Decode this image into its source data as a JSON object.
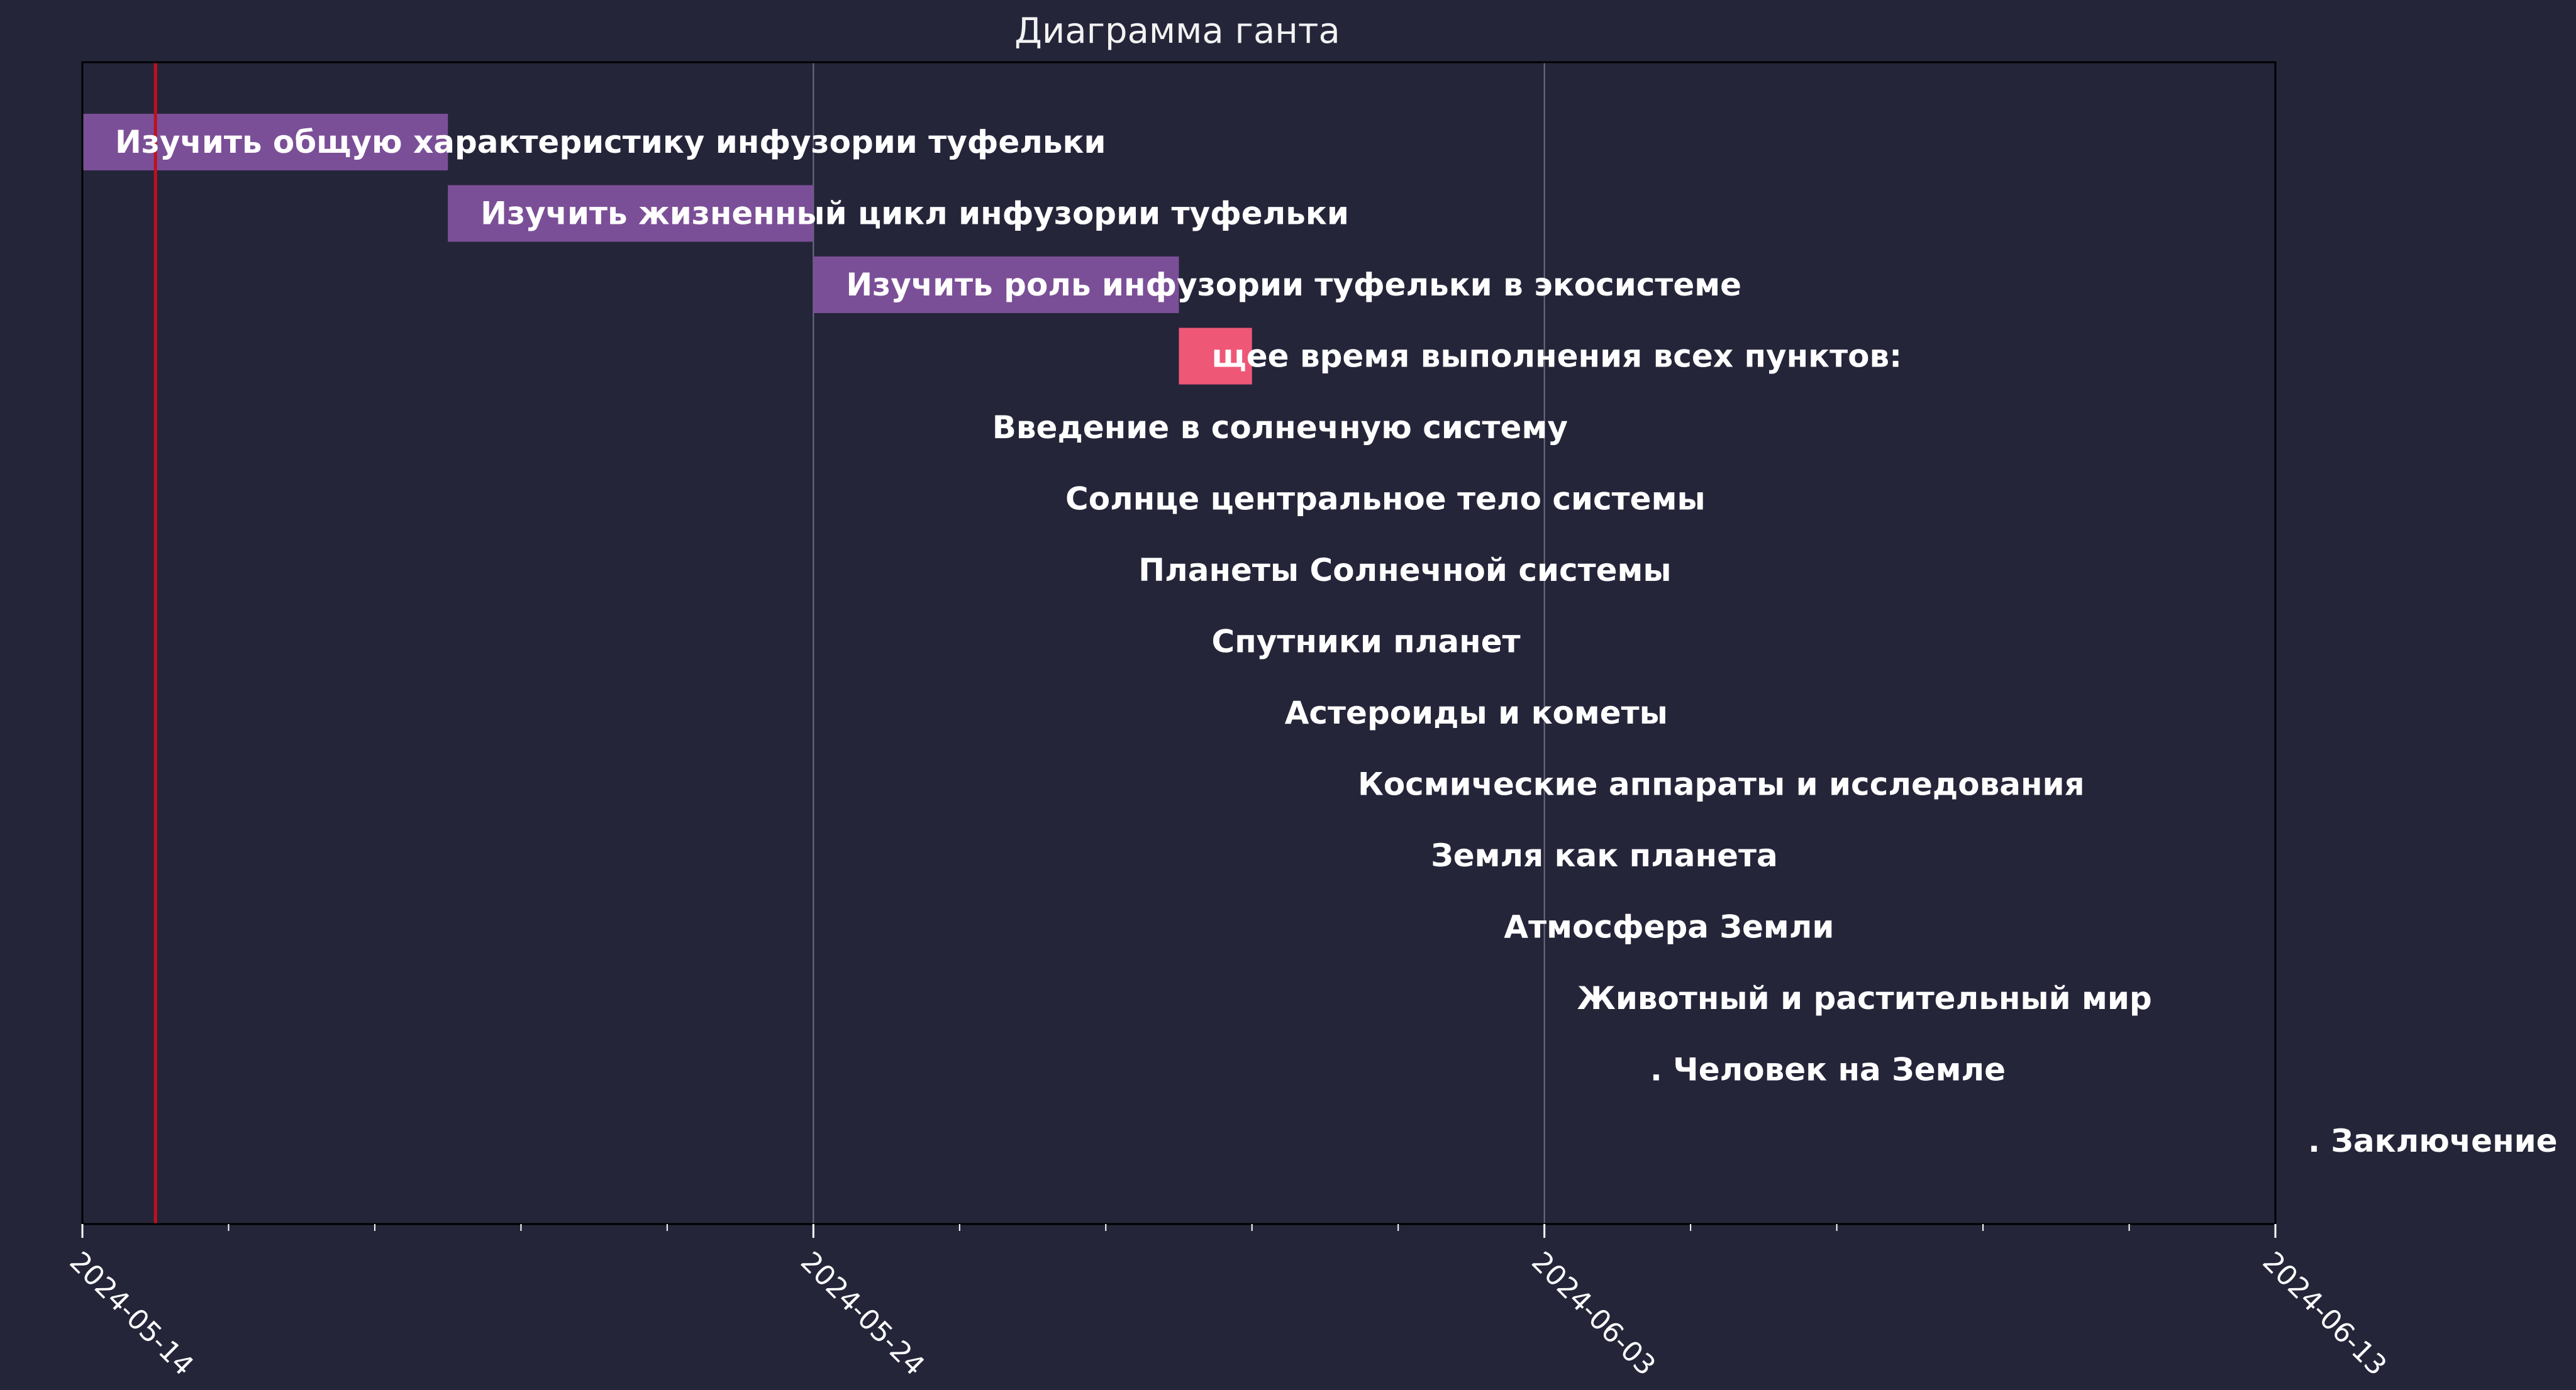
{
  "chart_data": {
    "type": "gantt",
    "title": "Диаграмма ганта",
    "xlabel": "",
    "ylabel": "",
    "x_range": [
      "2024-05-14",
      "2024-06-13"
    ],
    "x_ticks": [
      "2024-05-14",
      "2024-05-24",
      "2024-06-03",
      "2024-06-13"
    ],
    "grid": true,
    "today_marker": "2024-05-15",
    "tasks": [
      {
        "label": "Изучить общую характеристику инфузории туфельки",
        "start": "2024-05-14",
        "end": "2024-05-19",
        "color": "#7b4f97"
      },
      {
        "label": "Изучить жизненный цикл инфузории туфельки",
        "start": "2024-05-19",
        "end": "2024-05-24",
        "color": "#7b4f97"
      },
      {
        "label": "Изучить роль инфузории туфельки в экосистеме",
        "start": "2024-05-24",
        "end": "2024-05-29",
        "color": "#7b4f97"
      },
      {
        "label": "щее время выполнения всех пунктов:",
        "start": "2024-05-29",
        "end": "2024-05-30",
        "color": "#ef5777"
      },
      {
        "label": "Введение в солнечную систему",
        "start": "2024-05-26",
        "end": "2024-05-26",
        "color": "#7b4f97"
      },
      {
        "label": "Солнце  центральное тело системы",
        "start": "2024-05-27",
        "end": "2024-05-27",
        "color": "#7b4f97"
      },
      {
        "label": "Планеты Солнечной системы",
        "start": "2024-05-28",
        "end": "2024-05-28",
        "color": "#7b4f97"
      },
      {
        "label": "Спутники планет",
        "start": "2024-05-29",
        "end": "2024-05-29",
        "color": "#7b4f97"
      },
      {
        "label": "Астероиды и кометы",
        "start": "2024-05-30",
        "end": "2024-05-30",
        "color": "#7b4f97"
      },
      {
        "label": "Космические аппараты и исследования",
        "start": "2024-05-31",
        "end": "2024-05-31",
        "color": "#7b4f97"
      },
      {
        "label": "Земля как планета",
        "start": "2024-06-01",
        "end": "2024-06-01",
        "color": "#7b4f97"
      },
      {
        "label": "Атмосфера Земли",
        "start": "2024-06-02",
        "end": "2024-06-02",
        "color": "#7b4f97"
      },
      {
        "label": "Животный и растительный мир",
        "start": "2024-06-03",
        "end": "2024-06-03",
        "color": "#7b4f97"
      },
      {
        "label": ". Человек на Земле",
        "start": "2024-06-04",
        "end": "2024-06-04",
        "color": "#7b4f97"
      },
      {
        "label": ". Заключение",
        "start": "2024-06-13",
        "end": "2024-06-13",
        "color": "#7b4f97"
      }
    ],
    "colors": {
      "background": "#25253a",
      "frame": "#000000",
      "grid": "#6e6e82",
      "today_line": "#c0101e",
      "text": "#ffffff"
    }
  }
}
